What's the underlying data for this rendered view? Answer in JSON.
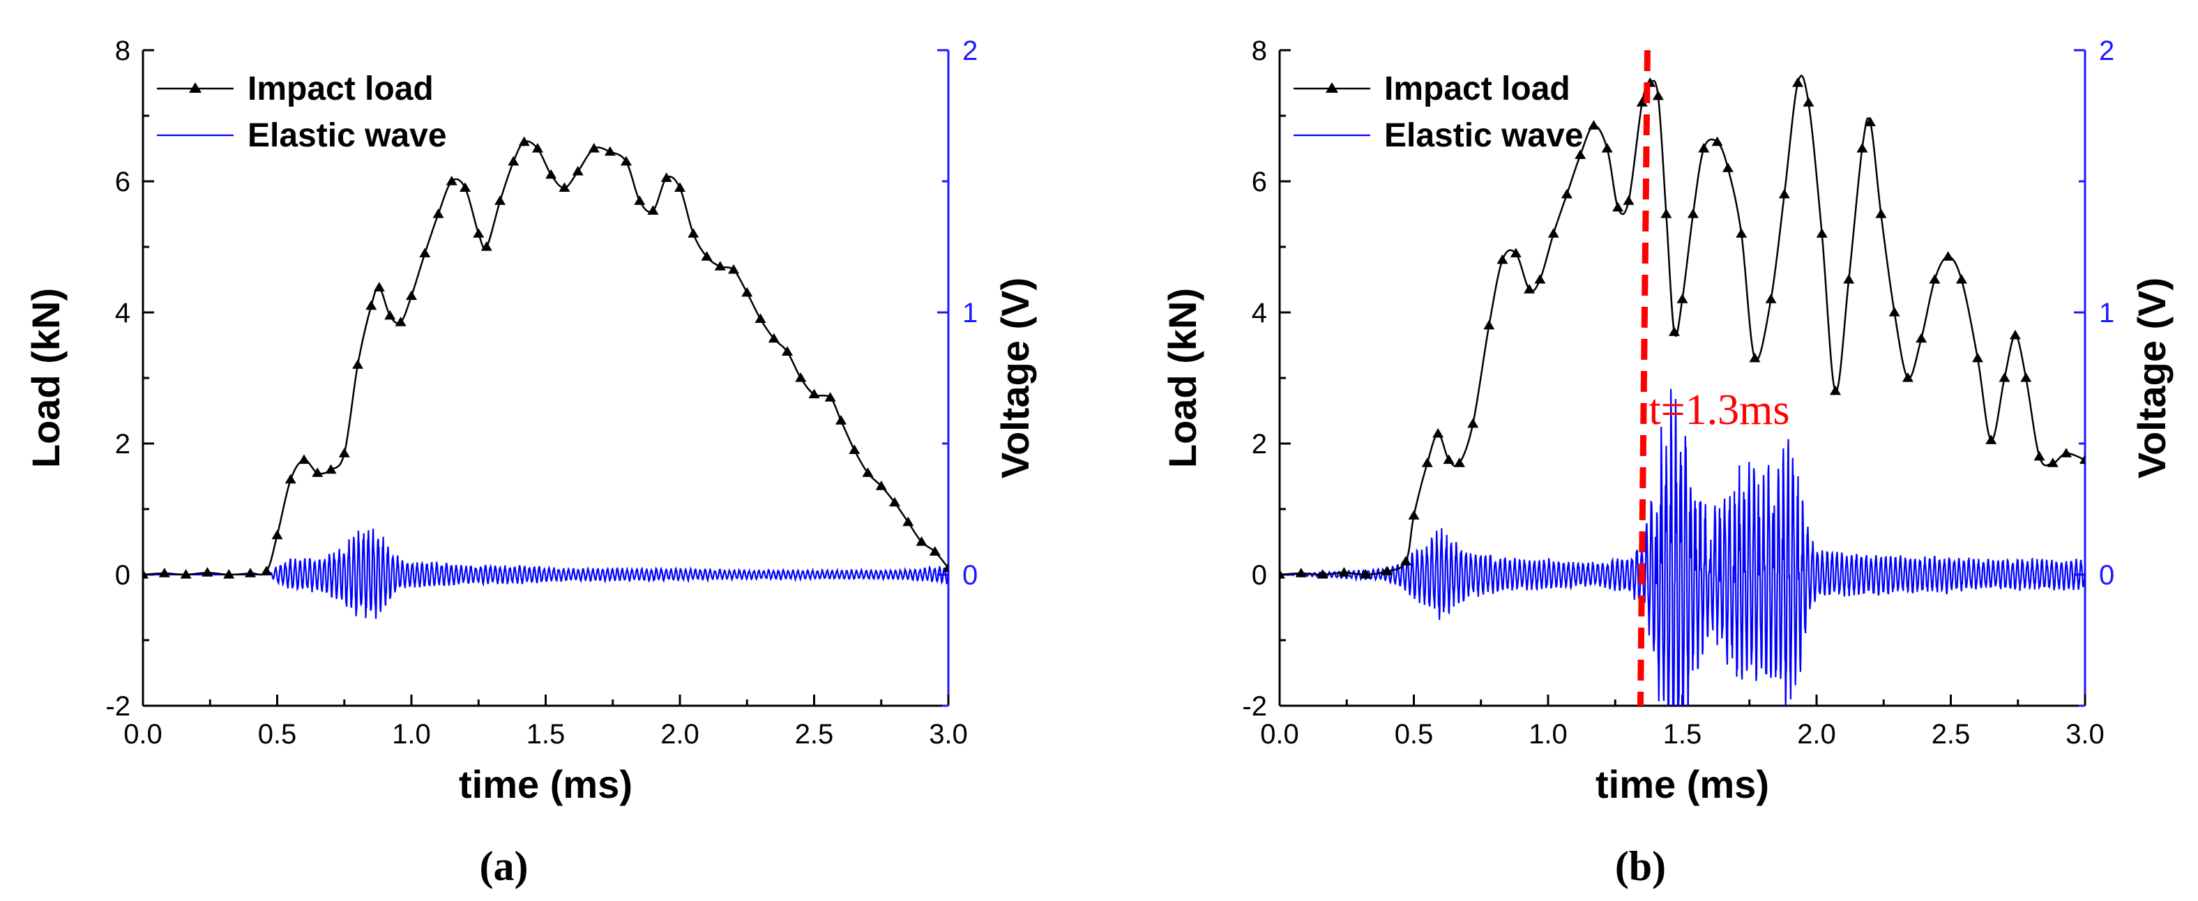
{
  "chart_data": [
    {
      "type": "line",
      "panel_label": "(a)",
      "xlabel": "time (ms)",
      "ylabel": "Load (kN)",
      "y2label": "Voltage (V)",
      "xlim": [
        0,
        3.0
      ],
      "ylim": [
        -2,
        8
      ],
      "y2lim": [
        -0.5,
        2
      ],
      "xticks": [
        "0.0",
        "0.5",
        "1.0",
        "1.5",
        "2.0",
        "2.5",
        "3.0"
      ],
      "yticks": [
        "-2",
        "0",
        "2",
        "4",
        "6",
        "8"
      ],
      "y2ticks": [
        "0",
        "1",
        "2"
      ],
      "legend_position": "top-left",
      "series": [
        {
          "name": "Impact load",
          "axis": "left",
          "color": "#000000",
          "marker": "triangle",
          "x": [
            0.0,
            0.08,
            0.16,
            0.24,
            0.32,
            0.4,
            0.46,
            0.5,
            0.55,
            0.6,
            0.65,
            0.7,
            0.75,
            0.8,
            0.85,
            0.88,
            0.92,
            0.96,
            1.0,
            1.05,
            1.1,
            1.15,
            1.2,
            1.25,
            1.28,
            1.33,
            1.38,
            1.42,
            1.47,
            1.52,
            1.57,
            1.62,
            1.68,
            1.74,
            1.8,
            1.85,
            1.9,
            1.95,
            2.0,
            2.05,
            2.1,
            2.15,
            2.2,
            2.25,
            2.3,
            2.35,
            2.4,
            2.45,
            2.5,
            2.56,
            2.6,
            2.65,
            2.7,
            2.75,
            2.8,
            2.85,
            2.9,
            2.95,
            3.0
          ],
          "y": [
            0.0,
            0.02,
            0.0,
            0.03,
            0.0,
            0.02,
            0.05,
            0.6,
            1.45,
            1.75,
            1.55,
            1.6,
            1.85,
            3.2,
            4.1,
            4.38,
            3.95,
            3.85,
            4.25,
            4.9,
            5.5,
            6.0,
            5.9,
            5.2,
            5.0,
            5.7,
            6.3,
            6.6,
            6.5,
            6.1,
            5.9,
            6.15,
            6.5,
            6.45,
            6.3,
            5.7,
            5.55,
            6.05,
            5.9,
            5.2,
            4.85,
            4.7,
            4.65,
            4.3,
            3.9,
            3.6,
            3.4,
            3.0,
            2.75,
            2.7,
            2.35,
            1.9,
            1.55,
            1.35,
            1.1,
            0.8,
            0.5,
            0.35,
            0.1
          ]
        },
        {
          "name": "Elastic wave",
          "axis": "right",
          "color": "#0000ff",
          "x": [
            0.0,
            0.47,
            0.5,
            0.55,
            0.6,
            0.65,
            0.7,
            0.75,
            0.8,
            0.84,
            0.88,
            0.92,
            0.96,
            1.0,
            1.1,
            1.2,
            1.4,
            1.6,
            1.8,
            2.0,
            2.2,
            2.4,
            2.6,
            2.8,
            2.9,
            3.0
          ],
          "y": [
            0.0,
            0.0,
            0.03,
            0.05,
            0.05,
            0.06,
            0.07,
            0.1,
            0.14,
            0.15,
            0.14,
            0.09,
            0.05,
            0.04,
            0.04,
            0.03,
            0.03,
            0.02,
            0.02,
            0.02,
            0.015,
            0.015,
            0.015,
            0.015,
            0.02,
            0.03
          ]
        }
      ]
    },
    {
      "type": "line",
      "panel_label": "(b)",
      "xlabel": "time (ms)",
      "ylabel": "Load (kN)",
      "y2label": "Voltage (V)",
      "xlim": [
        0,
        3.0
      ],
      "ylim": [
        -2,
        8
      ],
      "y2lim": [
        -0.5,
        2
      ],
      "xticks": [
        "0.0",
        "0.5",
        "1.0",
        "1.5",
        "2.0",
        "2.5",
        "3.0"
      ],
      "yticks": [
        "-2",
        "0",
        "2",
        "4",
        "6",
        "8"
      ],
      "y2ticks": [
        "0",
        "1",
        "2"
      ],
      "legend_position": "top-left",
      "annotation": {
        "text": "t=1.3ms",
        "x": 1.37
      },
      "series": [
        {
          "name": "Impact load",
          "axis": "left",
          "color": "#000000",
          "marker": "triangle",
          "x": [
            0.0,
            0.08,
            0.16,
            0.24,
            0.32,
            0.4,
            0.47,
            0.5,
            0.55,
            0.59,
            0.63,
            0.67,
            0.72,
            0.78,
            0.83,
            0.88,
            0.93,
            0.97,
            1.02,
            1.07,
            1.12,
            1.17,
            1.22,
            1.26,
            1.3,
            1.35,
            1.38,
            1.41,
            1.44,
            1.47,
            1.5,
            1.54,
            1.58,
            1.63,
            1.67,
            1.72,
            1.77,
            1.83,
            1.88,
            1.93,
            1.97,
            2.02,
            2.07,
            2.12,
            2.17,
            2.2,
            2.24,
            2.29,
            2.34,
            2.39,
            2.44,
            2.49,
            2.54,
            2.6,
            2.65,
            2.7,
            2.74,
            2.78,
            2.83,
            2.88,
            2.93,
            3.0
          ],
          "y": [
            0.0,
            0.02,
            0.0,
            0.03,
            0.0,
            0.05,
            0.2,
            0.9,
            1.7,
            2.15,
            1.75,
            1.7,
            2.3,
            3.8,
            4.8,
            4.9,
            4.35,
            4.5,
            5.2,
            5.8,
            6.4,
            6.85,
            6.5,
            5.6,
            5.7,
            7.2,
            7.5,
            7.3,
            5.5,
            3.7,
            4.2,
            5.5,
            6.5,
            6.6,
            6.2,
            5.2,
            3.3,
            4.2,
            5.8,
            7.5,
            7.2,
            5.2,
            2.8,
            4.5,
            6.5,
            6.9,
            5.5,
            4.0,
            3.0,
            3.6,
            4.5,
            4.85,
            4.5,
            3.3,
            2.05,
            3.0,
            3.65,
            3.0,
            1.8,
            1.7,
            1.85,
            1.75
          ]
        },
        {
          "name": "Elastic wave",
          "axis": "right",
          "color": "#0000ff",
          "x": [
            0.0,
            0.4,
            0.45,
            0.5,
            0.55,
            0.6,
            0.65,
            0.7,
            0.75,
            0.8,
            0.9,
            1.0,
            1.1,
            1.2,
            1.3,
            1.36,
            1.4,
            1.44,
            1.48,
            1.52,
            1.56,
            1.6,
            1.65,
            1.7,
            1.75,
            1.8,
            1.85,
            1.9,
            1.93,
            1.97,
            2.0,
            2.1,
            2.2,
            2.3,
            2.4,
            2.5,
            2.6,
            2.7,
            2.8,
            2.9,
            3.0
          ],
          "y": [
            0.0,
            0.02,
            0.04,
            0.08,
            0.1,
            0.15,
            0.11,
            0.08,
            0.07,
            0.06,
            0.05,
            0.05,
            0.04,
            0.04,
            0.06,
            0.12,
            0.35,
            0.55,
            0.6,
            0.45,
            0.3,
            0.2,
            0.25,
            0.35,
            0.35,
            0.35,
            0.4,
            0.45,
            0.35,
            0.15,
            0.08,
            0.07,
            0.07,
            0.06,
            0.06,
            0.06,
            0.05,
            0.05,
            0.05,
            0.05,
            0.05
          ]
        }
      ]
    }
  ],
  "wave_colors": {
    "wave": "#0000ff",
    "load": "#000000",
    "annotation": "#ff0000",
    "right_axis": "#1a1aff"
  }
}
